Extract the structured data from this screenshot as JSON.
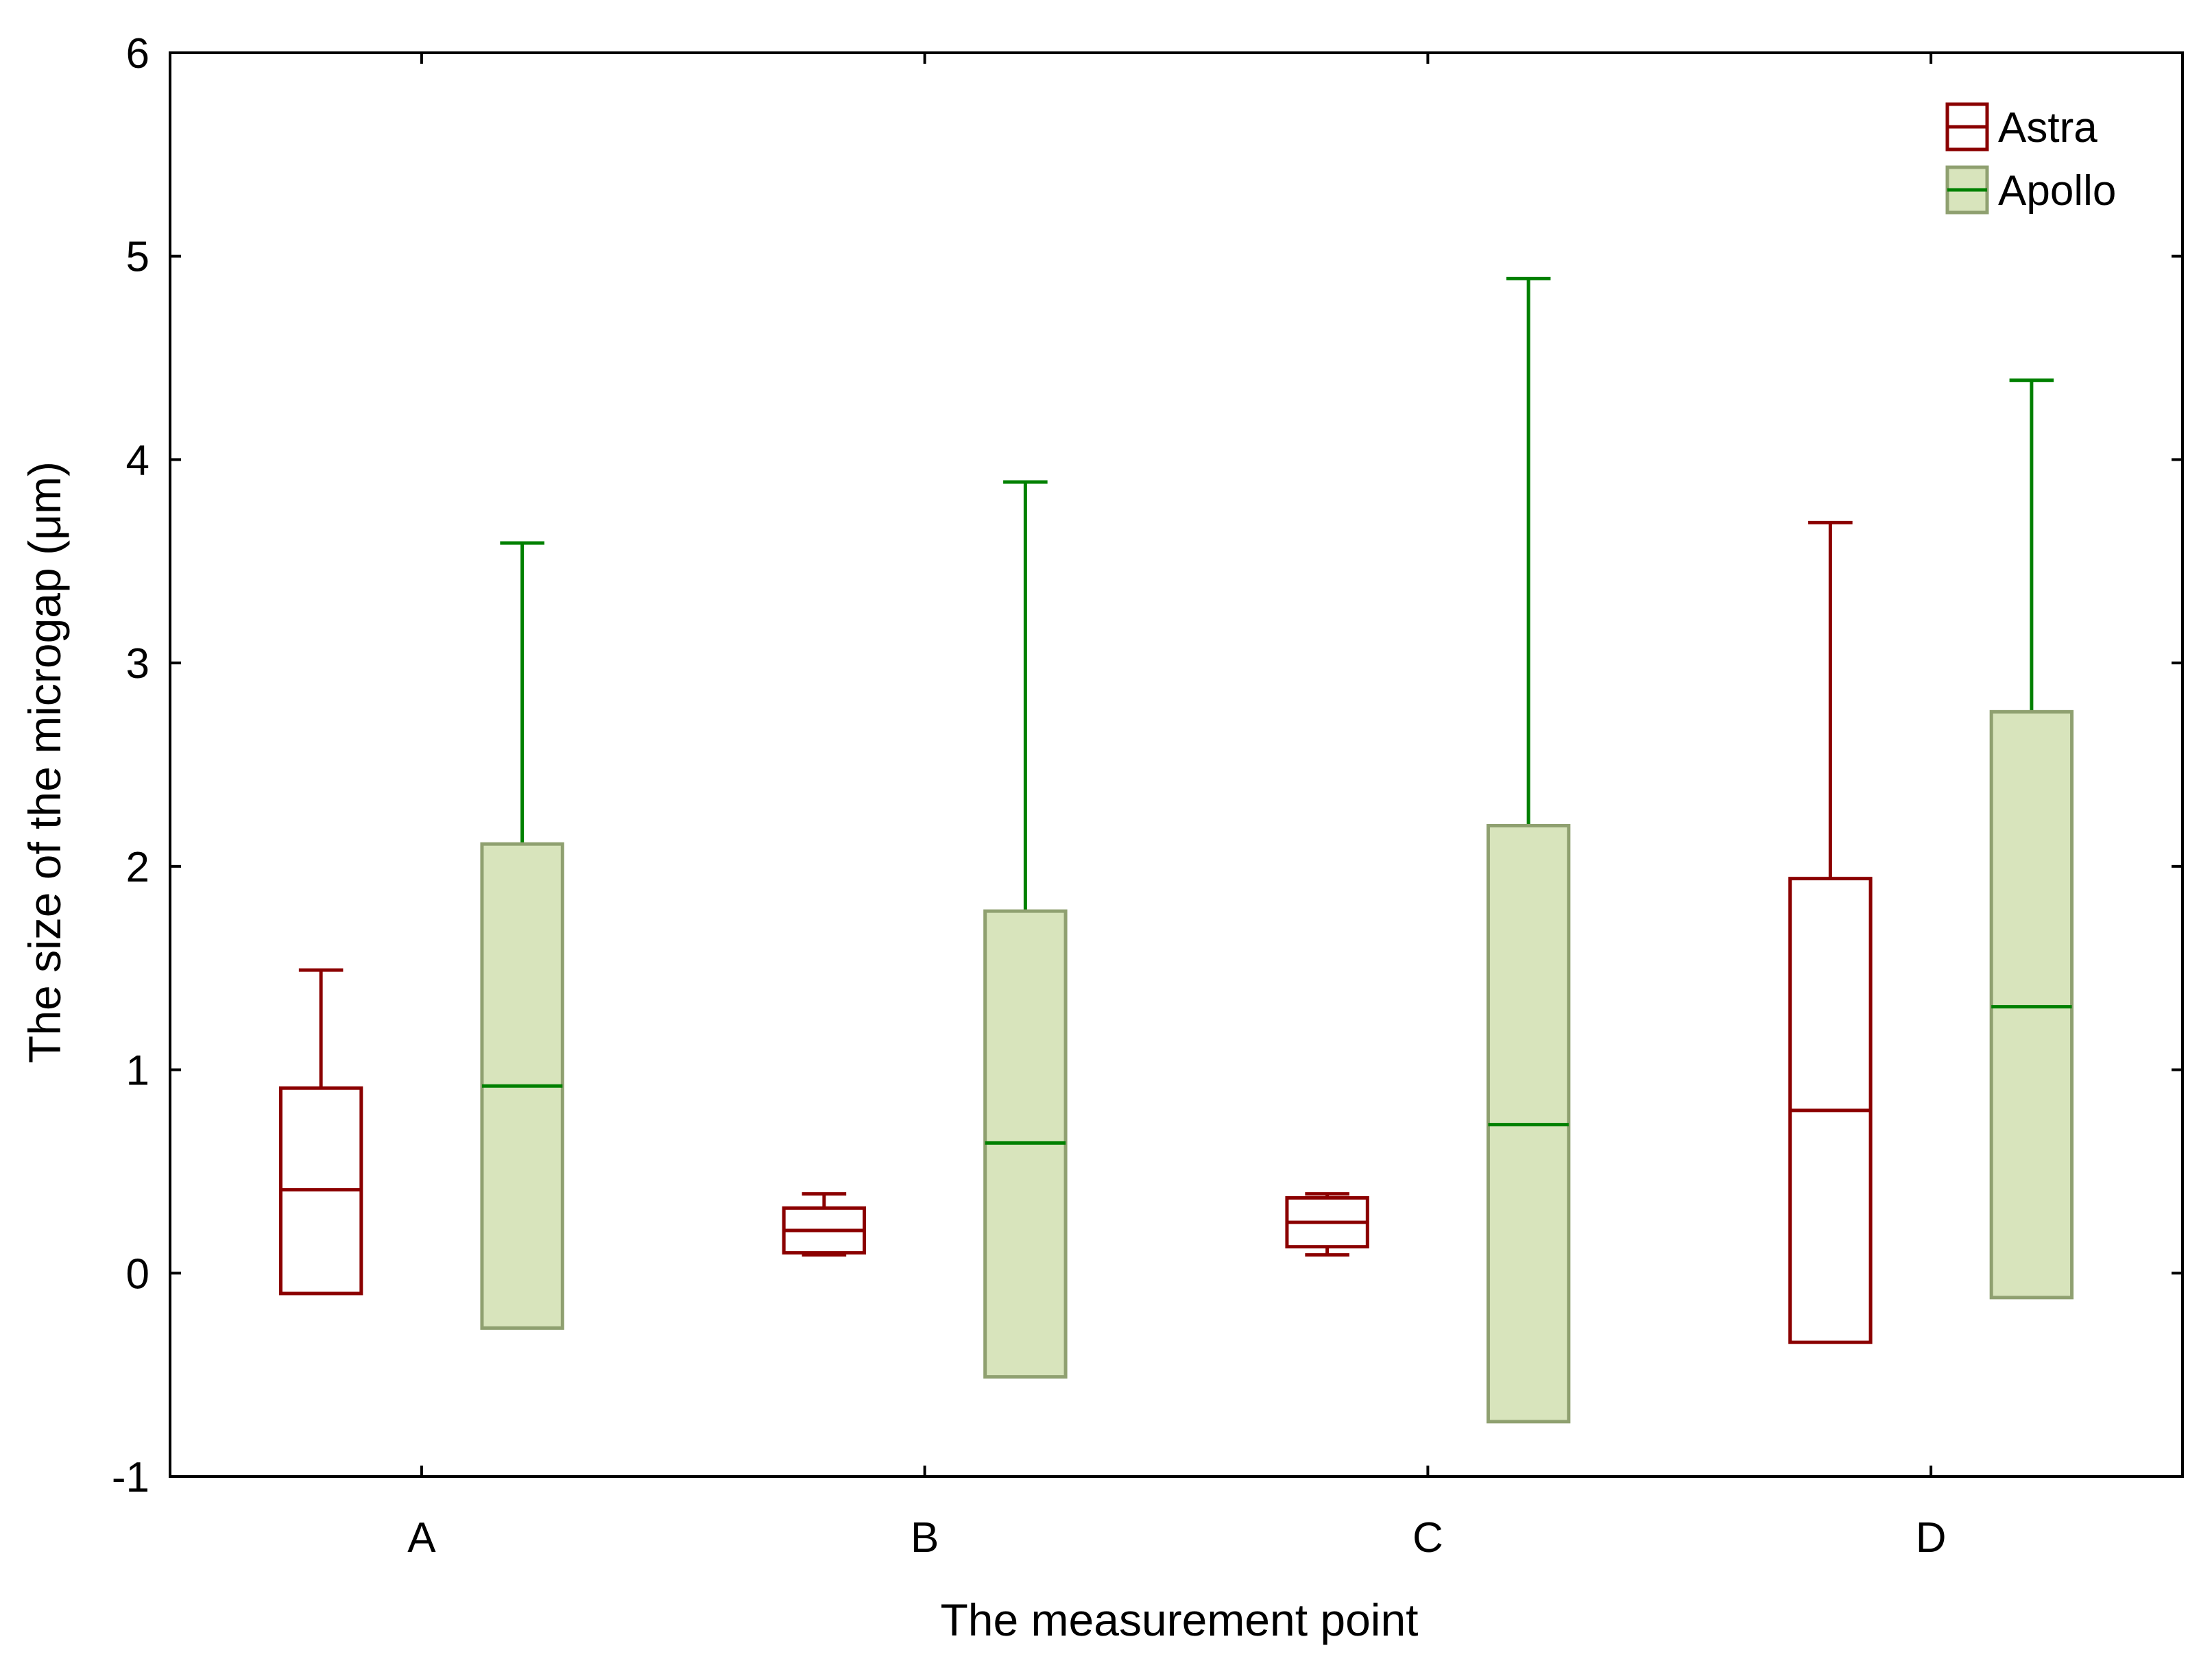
{
  "chart_data": {
    "type": "boxplot",
    "title": "",
    "xlabel": "The measurement point",
    "ylabel": "The size of the microgap (μm)",
    "ylim": [
      -1,
      6
    ],
    "yticks": [
      "-1",
      "0",
      "1",
      "2",
      "3",
      "4",
      "5",
      "6"
    ],
    "categories": [
      "A",
      "B",
      "C",
      "D"
    ],
    "legend": {
      "position": "top-right"
    },
    "grid": false,
    "series": [
      {
        "name": "Astra",
        "box_fill": "#ffffff",
        "line_color": "#8b0000",
        "boxes": [
          {
            "whisker_low": -0.1,
            "q1": -0.1,
            "median": 0.41,
            "q3": 0.91,
            "whisker_high": 1.49
          },
          {
            "whisker_low": 0.09,
            "q1": 0.1,
            "median": 0.21,
            "q3": 0.32,
            "whisker_high": 0.39
          },
          {
            "whisker_low": 0.09,
            "q1": 0.13,
            "median": 0.25,
            "q3": 0.37,
            "whisker_high": 0.39
          },
          {
            "whisker_low": -0.34,
            "q1": -0.34,
            "median": 0.8,
            "q3": 1.94,
            "whisker_high": 3.69
          }
        ]
      },
      {
        "name": "Apollo",
        "box_fill": "#d8e4bc",
        "box_edge": "#8fa070",
        "line_color": "#008000",
        "boxes": [
          {
            "whisker_low": -0.27,
            "q1": -0.27,
            "median": 0.92,
            "q3": 2.11,
            "whisker_high": 3.59
          },
          {
            "whisker_low": -0.51,
            "q1": -0.51,
            "median": 0.64,
            "q3": 1.78,
            "whisker_high": 3.89
          },
          {
            "whisker_low": -0.73,
            "q1": -0.73,
            "median": 0.73,
            "q3": 2.2,
            "whisker_high": 4.89
          },
          {
            "whisker_low": -0.12,
            "q1": -0.12,
            "median": 1.31,
            "q3": 2.76,
            "whisker_high": 4.39
          }
        ]
      }
    ]
  }
}
